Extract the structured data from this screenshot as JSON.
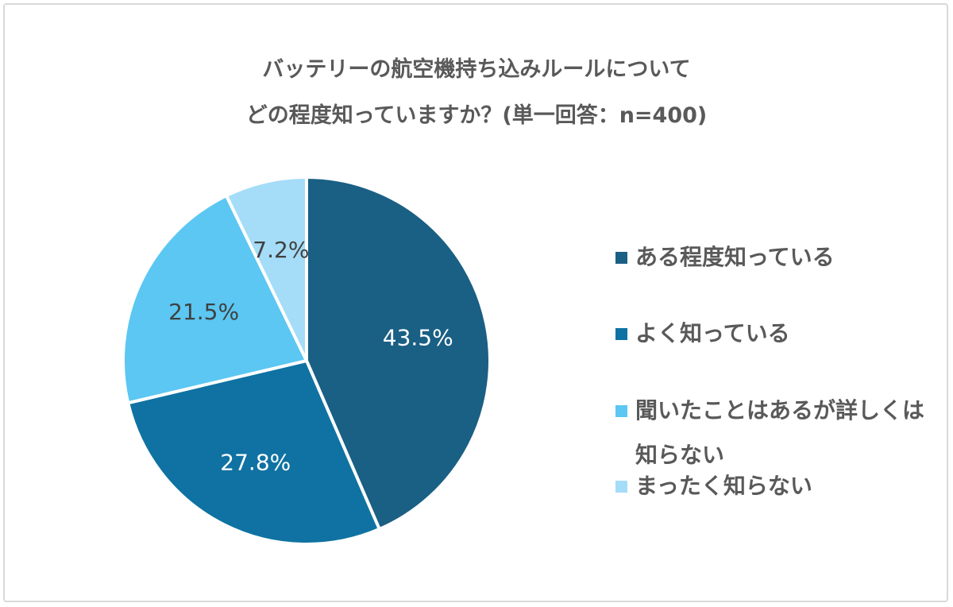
{
  "chart_data": {
    "type": "pie",
    "title_line1": "バッテリーの航空機持ち込みルールについて",
    "title_line2": "どの程度知っていますか？(単一回答：n=400)",
    "slices": [
      {
        "label": "ある程度知っている",
        "value": 43.5,
        "value_label": "43.5%",
        "color": "#1a5f84",
        "label_color": "#ffffff"
      },
      {
        "label": "よく知っている",
        "value": 27.8,
        "value_label": "27.8%",
        "color": "#0f72a2",
        "label_color": "#ffffff"
      },
      {
        "label": "聞いたことはあるが詳しくは知らない",
        "value": 21.5,
        "value_label": "21.5%",
        "color": "#5bc7f2",
        "label_color": "#404040"
      },
      {
        "label": "まったく知らない",
        "value": 7.2,
        "value_label": "7.2%",
        "color": "#a5dcf7",
        "label_color": "#404040"
      }
    ],
    "legend_position": "right"
  }
}
